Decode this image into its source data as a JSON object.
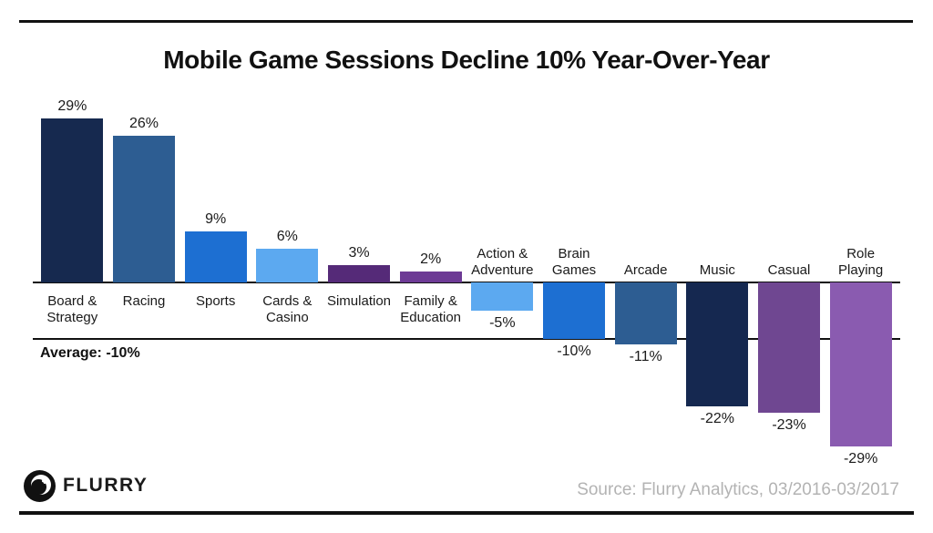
{
  "header": {
    "title": "Mobile Game Sessions Decline 10% Year-Over-Year"
  },
  "chart_data": {
    "type": "bar",
    "title": "Mobile Game Sessions Decline 10% Year-Over-Year",
    "categories": [
      "Board &\nStrategy",
      "Racing",
      "Sports",
      "Cards &\nCasino",
      "Simulation",
      "Family &\nEducation",
      "Action &\nAdventure",
      "Brain\nGames",
      "Arcade",
      "Music",
      "Casual",
      "Role\nPlaying"
    ],
    "values": [
      29,
      26,
      9,
      6,
      3,
      2,
      -5,
      -10,
      -11,
      -22,
      -23,
      -29
    ],
    "value_labels": [
      "29%",
      "26%",
      "9%",
      "6%",
      "3%",
      "2%",
      "-5%",
      "-10%",
      "-11%",
      "-22%",
      "-23%",
      "-29%"
    ],
    "bar_colors": [
      "#16294f",
      "#2d5d92",
      "#1d6fd2",
      "#5ca9f0",
      "#552a78",
      "#6d3a95",
      "#5ca9f0",
      "#1d6fd2",
      "#2d5d92",
      "#152850",
      "#6f4791",
      "#8a5bb0"
    ],
    "average_line": {
      "value": -10,
      "label": "Average: -10%"
    },
    "baseline_value": 0,
    "ylim": [
      -32,
      32
    ],
    "grid": false,
    "legend": "none",
    "axis_color": "#111111"
  },
  "footer": {
    "brand": "FLURRY",
    "source": "Source: Flurry Analytics, 03/2016-03/2017"
  }
}
